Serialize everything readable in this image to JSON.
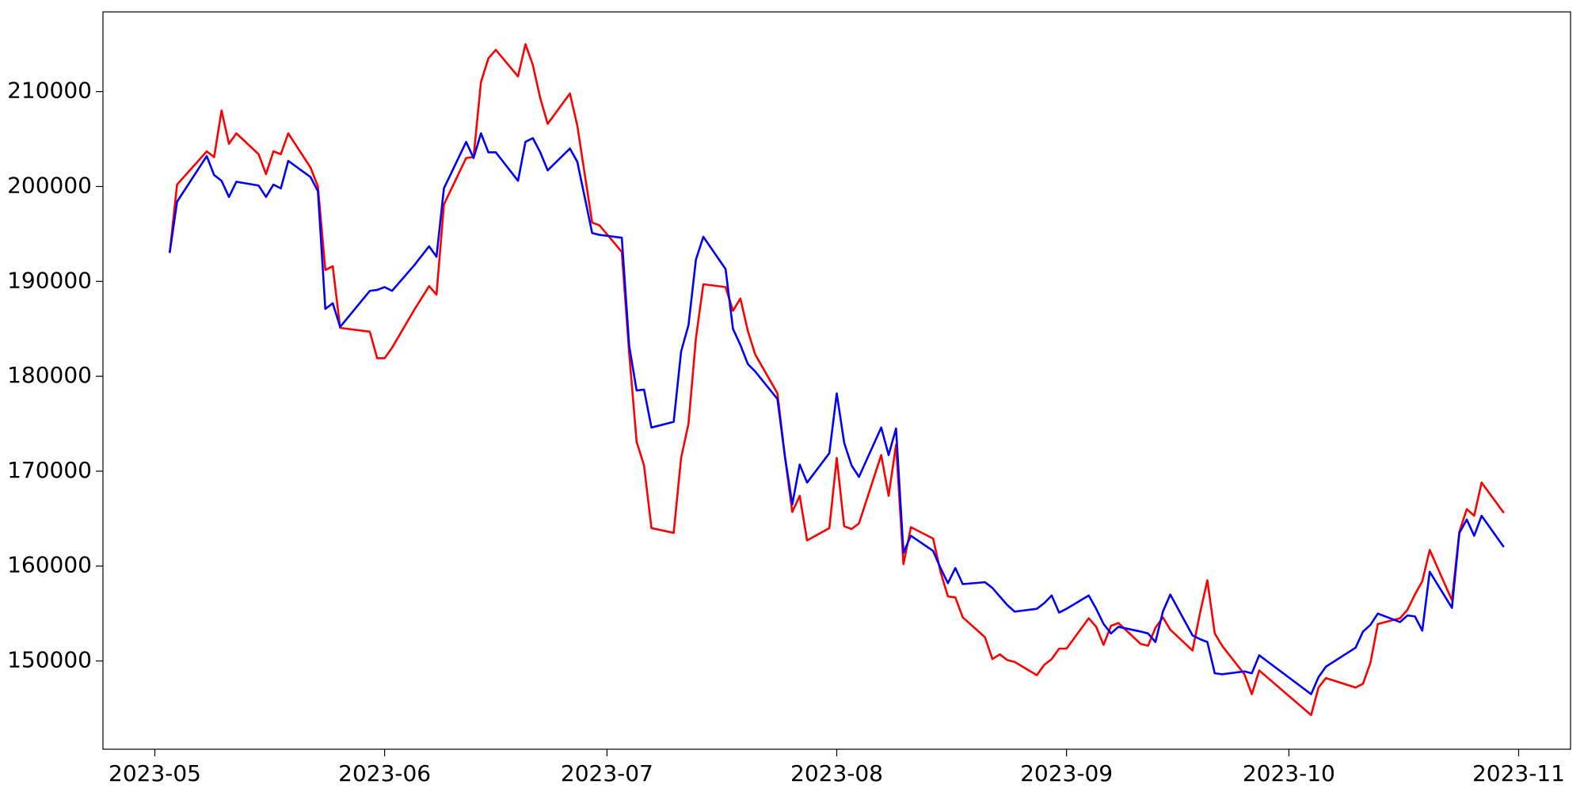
{
  "chart_data": {
    "type": "line",
    "x": [
      "2023-05-03",
      "2023-05-04",
      "2023-05-08",
      "2023-05-09",
      "2023-05-10",
      "2023-05-11",
      "2023-05-12",
      "2023-05-15",
      "2023-05-16",
      "2023-05-17",
      "2023-05-18",
      "2023-05-19",
      "2023-05-22",
      "2023-05-23",
      "2023-05-24",
      "2023-05-25",
      "2023-05-26",
      "2023-05-30",
      "2023-05-31",
      "2023-06-01",
      "2023-06-02",
      "2023-06-05",
      "2023-06-07",
      "2023-06-08",
      "2023-06-09",
      "2023-06-12",
      "2023-06-13",
      "2023-06-14",
      "2023-06-15",
      "2023-06-16",
      "2023-06-19",
      "2023-06-20",
      "2023-06-21",
      "2023-06-22",
      "2023-06-23",
      "2023-06-26",
      "2023-06-27",
      "2023-06-29",
      "2023-06-30",
      "2023-07-03",
      "2023-07-04",
      "2023-07-05",
      "2023-07-06",
      "2023-07-07",
      "2023-07-10",
      "2023-07-11",
      "2023-07-12",
      "2023-07-13",
      "2023-07-14",
      "2023-07-17",
      "2023-07-18",
      "2023-07-19",
      "2023-07-20",
      "2023-07-21",
      "2023-07-24",
      "2023-07-25",
      "2023-07-26",
      "2023-07-27",
      "2023-07-28",
      "2023-07-31",
      "2023-08-01",
      "2023-08-02",
      "2023-08-03",
      "2023-08-04",
      "2023-08-07",
      "2023-08-08",
      "2023-08-09",
      "2023-08-10",
      "2023-08-11",
      "2023-08-14",
      "2023-08-15",
      "2023-08-16",
      "2023-08-17",
      "2023-08-18",
      "2023-08-21",
      "2023-08-22",
      "2023-08-23",
      "2023-08-24",
      "2023-08-25",
      "2023-08-28",
      "2023-08-29",
      "2023-08-30",
      "2023-08-31",
      "2023-09-01",
      "2023-09-04",
      "2023-09-05",
      "2023-09-06",
      "2023-09-07",
      "2023-09-08",
      "2023-09-11",
      "2023-09-12",
      "2023-09-13",
      "2023-09-14",
      "2023-09-15",
      "2023-09-18",
      "2023-09-19",
      "2023-09-20",
      "2023-09-21",
      "2023-09-22",
      "2023-09-25",
      "2023-09-26",
      "2023-09-27",
      "2023-10-04",
      "2023-10-05",
      "2023-10-06",
      "2023-10-10",
      "2023-10-11",
      "2023-10-12",
      "2023-10-13",
      "2023-10-16",
      "2023-10-17",
      "2023-10-18",
      "2023-10-19",
      "2023-10-20",
      "2023-10-23",
      "2023-10-24",
      "2023-10-25",
      "2023-10-26",
      "2023-10-27",
      "2023-10-30"
    ],
    "series": [
      {
        "color": "#ff0000",
        "values": [
          193000,
          200200,
          203700,
          203100,
          208000,
          204500,
          205600,
          203400,
          201300,
          203700,
          203400,
          205600,
          202000,
          200000,
          191200,
          191600,
          185100,
          184700,
          181900,
          181900,
          183000,
          187000,
          189500,
          188600,
          198100,
          203000,
          203100,
          211000,
          213500,
          214400,
          211600,
          215000,
          212800,
          209300,
          206600,
          209800,
          206400,
          196200,
          195900,
          193100,
          182400,
          173100,
          170600,
          164000,
          163500,
          171400,
          175000,
          184000,
          189700,
          189400,
          186900,
          188200,
          184800,
          182300,
          178200,
          171600,
          165700,
          167400,
          162700,
          164000,
          171400,
          164200,
          163900,
          164500,
          171700,
          167400,
          172800,
          160200,
          164100,
          162900,
          159400,
          156800,
          156700,
          154600,
          152500,
          150200,
          150700,
          150100,
          149900,
          148500,
          149600,
          150200,
          151300,
          151300,
          154500,
          153600,
          151700,
          153700,
          154000,
          151800,
          151600,
          153500,
          154600,
          153300,
          151100,
          155000,
          158500,
          152900,
          151600,
          148600,
          146500,
          149000,
          144300,
          147200,
          148200,
          147200,
          147600,
          149800,
          153900,
          154500,
          155400,
          157000,
          158400,
          161700,
          156400,
          163600,
          166000,
          165300,
          168800,
          165600
        ]
      },
      {
        "color": "#0000ff",
        "values": [
          193000,
          198400,
          203200,
          201200,
          200600,
          198900,
          200500,
          200100,
          198900,
          200200,
          199800,
          202700,
          201000,
          199500,
          187100,
          187700,
          185200,
          189000,
          189100,
          189400,
          189000,
          191700,
          193700,
          192600,
          199800,
          204700,
          203000,
          205600,
          203600,
          203600,
          200600,
          204700,
          205100,
          203600,
          201700,
          204000,
          202600,
          195100,
          194900,
          194600,
          183200,
          178500,
          178600,
          174600,
          175200,
          182600,
          185400,
          192300,
          194700,
          191300,
          185000,
          183300,
          181300,
          180500,
          177600,
          171600,
          166500,
          170700,
          168800,
          171900,
          178200,
          173000,
          170600,
          169400,
          174600,
          171700,
          174500,
          161400,
          163200,
          161600,
          159800,
          158200,
          159800,
          158100,
          158300,
          157700,
          156800,
          155900,
          155200,
          155500,
          156100,
          156900,
          155100,
          155500,
          156900,
          155500,
          153900,
          152900,
          153600,
          153100,
          152900,
          152000,
          155200,
          157000,
          152700,
          152300,
          152000,
          148700,
          148600,
          148900,
          148700,
          150600,
          146500,
          148300,
          149400,
          151400,
          153100,
          153800,
          155000,
          154100,
          154800,
          154700,
          153200,
          159400,
          155600,
          163500,
          164900,
          163200,
          165300,
          162000
        ]
      }
    ],
    "xlim": [
      "2023-04-24",
      "2023-11-08"
    ],
    "xticks": [
      {
        "value": "2023-05-01",
        "label": "2023-05"
      },
      {
        "value": "2023-06-01",
        "label": "2023-06"
      },
      {
        "value": "2023-07-01",
        "label": "2023-07"
      },
      {
        "value": "2023-08-01",
        "label": "2023-08"
      },
      {
        "value": "2023-09-01",
        "label": "2023-09"
      },
      {
        "value": "2023-10-01",
        "label": "2023-10"
      },
      {
        "value": "2023-11-01",
        "label": "2023-11"
      }
    ],
    "ylim": [
      140700,
      218400
    ],
    "yticks": [
      150000,
      160000,
      170000,
      180000,
      190000,
      200000,
      210000
    ],
    "grid": false
  }
}
